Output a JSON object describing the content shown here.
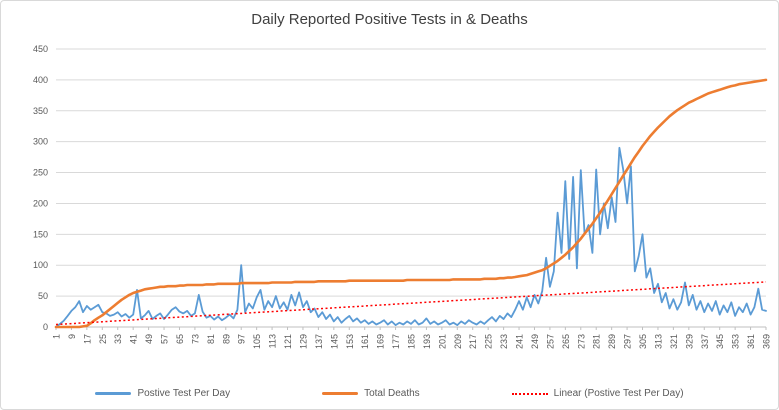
{
  "title": "Daily Reported Positive Tests in & Deaths",
  "colors": {
    "positive_tests": "#5B9BD5",
    "total_deaths": "#ED7D31",
    "trendline": "#FF0000",
    "gridline": "#D9D9D9",
    "axis_line": "#BFBFBF",
    "axis_text": "#595959",
    "title_text": "#404040",
    "border": "#D9D9D9",
    "background": "#FFFFFF"
  },
  "legend": {
    "items": [
      {
        "label": "Postive Test Per Day",
        "style": "solid",
        "color": "#5B9BD5"
      },
      {
        "label": "Total Deaths",
        "style": "solid",
        "color": "#ED7D31"
      },
      {
        "label": "Linear (Postive Test Per Day)",
        "style": "dotted",
        "color": "#FF0000"
      }
    ]
  },
  "chart_data": {
    "type": "line",
    "title": "Daily Reported Positive Tests in & Deaths",
    "xlabel": "",
    "ylabel": "",
    "x_range": [
      1,
      369
    ],
    "ylim": [
      0,
      450
    ],
    "y_ticks": [
      0,
      50,
      100,
      150,
      200,
      250,
      300,
      350,
      400,
      450
    ],
    "x_tick_step": 8,
    "x_tick_labels": [
      "1",
      "9",
      "17",
      "25",
      "33",
      "41",
      "49",
      "57",
      "65",
      "73",
      "81",
      "89",
      "97",
      "105",
      "113",
      "121",
      "129",
      "137",
      "145",
      "153",
      "161",
      "169",
      "177",
      "185",
      "193",
      "201",
      "209",
      "217",
      "225",
      "233",
      "241",
      "249",
      "257",
      "265",
      "273",
      "281",
      "289",
      "297",
      "305",
      "313",
      "321",
      "329",
      "337",
      "345",
      "353",
      "361",
      "369"
    ],
    "grid": "horizontal",
    "legend_position": "bottom",
    "x": [
      1,
      3,
      5,
      7,
      9,
      11,
      13,
      15,
      17,
      19,
      21,
      23,
      25,
      27,
      29,
      31,
      33,
      35,
      37,
      39,
      41,
      43,
      45,
      47,
      49,
      51,
      53,
      55,
      57,
      59,
      61,
      63,
      65,
      67,
      69,
      71,
      73,
      75,
      77,
      79,
      81,
      83,
      85,
      87,
      89,
      91,
      93,
      95,
      97,
      99,
      101,
      103,
      105,
      107,
      109,
      111,
      113,
      115,
      117,
      119,
      121,
      123,
      125,
      127,
      129,
      131,
      133,
      135,
      137,
      139,
      141,
      143,
      145,
      147,
      149,
      151,
      153,
      155,
      157,
      159,
      161,
      163,
      165,
      167,
      169,
      171,
      173,
      175,
      177,
      179,
      181,
      183,
      185,
      187,
      189,
      191,
      193,
      195,
      197,
      199,
      201,
      203,
      205,
      207,
      209,
      211,
      213,
      215,
      217,
      219,
      221,
      223,
      225,
      227,
      229,
      231,
      233,
      235,
      237,
      239,
      241,
      243,
      245,
      247,
      249,
      251,
      253,
      255,
      257,
      259,
      261,
      263,
      265,
      267,
      269,
      271,
      273,
      275,
      277,
      279,
      281,
      283,
      285,
      287,
      289,
      291,
      293,
      295,
      297,
      299,
      301,
      303,
      305,
      307,
      309,
      311,
      313,
      315,
      317,
      319,
      321,
      323,
      325,
      327,
      329,
      331,
      333,
      335,
      337,
      339,
      341,
      343,
      345,
      347,
      349,
      351,
      353,
      355,
      357,
      359,
      361,
      363,
      365,
      367,
      369
    ],
    "series": [
      {
        "name": "Postive Test Per Day",
        "color": "#5B9BD5",
        "values": [
          0,
          5,
          10,
          18,
          26,
          32,
          42,
          24,
          34,
          28,
          32,
          36,
          24,
          22,
          18,
          20,
          24,
          17,
          21,
          15,
          20,
          60,
          14,
          19,
          26,
          13,
          18,
          22,
          13,
          20,
          28,
          32,
          25,
          22,
          26,
          18,
          22,
          52,
          25,
          15,
          18,
          12,
          17,
          11,
          15,
          20,
          14,
          28,
          100,
          24,
          38,
          30,
          48,
          60,
          28,
          42,
          32,
          50,
          30,
          40,
          28,
          52,
          35,
          56,
          32,
          42,
          24,
          30,
          16,
          24,
          13,
          20,
          9,
          16,
          7,
          13,
          18,
          9,
          14,
          7,
          11,
          5,
          9,
          4,
          7,
          11,
          4,
          9,
          3,
          7,
          4,
          9,
          5,
          11,
          4,
          7,
          14,
          5,
          9,
          4,
          7,
          11,
          4,
          7,
          3,
          9,
          5,
          11,
          7,
          4,
          9,
          5,
          11,
          16,
          9,
          18,
          13,
          22,
          16,
          28,
          42,
          28,
          48,
          32,
          52,
          38,
          58,
          112,
          65,
          90,
          185,
          120,
          236,
          110,
          243,
          95,
          254,
          150,
          165,
          120,
          255,
          150,
          200,
          160,
          210,
          170,
          290,
          255,
          200,
          260,
          90,
          115,
          150,
          80,
          95,
          55,
          70,
          40,
          55,
          30,
          45,
          28,
          40,
          72,
          35,
          52,
          28,
          42,
          24,
          38,
          26,
          42,
          20,
          35,
          24,
          40,
          18,
          32,
          24,
          38,
          20,
          32,
          62,
          28,
          26
        ]
      },
      {
        "name": "Total Deaths",
        "color": "#ED7D31",
        "values": [
          0,
          0,
          0,
          0,
          0,
          0,
          0,
          1,
          2,
          6,
          11,
          15,
          19,
          24,
          29,
          34,
          39,
          44,
          48,
          52,
          55,
          57,
          59,
          61,
          62,
          63,
          64,
          65,
          65,
          66,
          66,
          66,
          67,
          67,
          68,
          68,
          68,
          68,
          68,
          69,
          69,
          69,
          70,
          70,
          70,
          70,
          70,
          70,
          71,
          71,
          71,
          71,
          71,
          71,
          71,
          71,
          72,
          72,
          72,
          72,
          72,
          72,
          73,
          73,
          73,
          73,
          73,
          73,
          74,
          74,
          74,
          74,
          74,
          74,
          74,
          74,
          75,
          75,
          75,
          75,
          75,
          75,
          75,
          75,
          75,
          75,
          75,
          75,
          75,
          75,
          75,
          76,
          76,
          76,
          76,
          76,
          76,
          76,
          76,
          76,
          76,
          76,
          76,
          77,
          77,
          77,
          77,
          77,
          77,
          77,
          77,
          78,
          78,
          78,
          78,
          79,
          79,
          80,
          80,
          81,
          82,
          83,
          84,
          86,
          88,
          90,
          92,
          95,
          99,
          103,
          107,
          112,
          117,
          123,
          129,
          136,
          143,
          151,
          159,
          167,
          176,
          185,
          195,
          205,
          215,
          225,
          235,
          245,
          255,
          265,
          275,
          284,
          293,
          301,
          309,
          316,
          323,
          329,
          335,
          341,
          346,
          351,
          355,
          359,
          363,
          366,
          369,
          372,
          375,
          378,
          380,
          382,
          384,
          386,
          388,
          390,
          391,
          393,
          394,
          395,
          396,
          397,
          398,
          399,
          400
        ]
      }
    ],
    "trendline": {
      "name": "Linear (Postive Test Per Day)",
      "color": "#FF0000",
      "style": "dotted",
      "start_value": 4,
      "end_value": 73
    }
  }
}
